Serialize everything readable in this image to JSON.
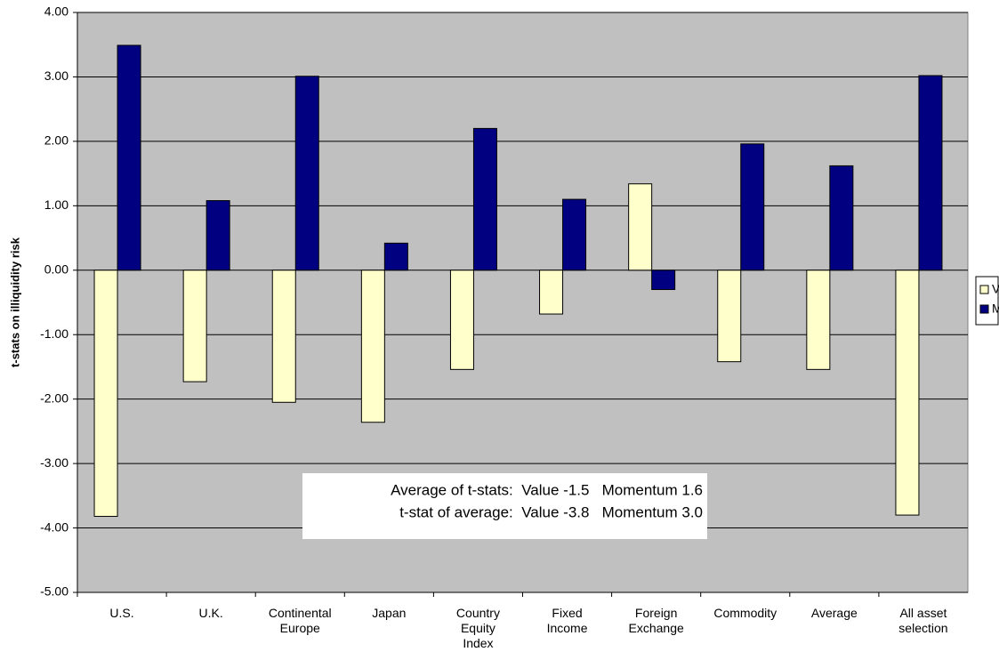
{
  "chart_data": {
    "type": "bar",
    "y_label": "t-stats on illiquidity risk",
    "categories": [
      "U.S.",
      "U.K.",
      "Continental Europe",
      "Japan",
      "Country Equity Index",
      "Fixed Income",
      "Foreign Exchange",
      "Commodity",
      "Average",
      "All asset selection"
    ],
    "series": [
      {
        "name": "Value",
        "color": "#ffffcc",
        "values": [
          -3.82,
          -1.73,
          -2.05,
          -2.36,
          -1.54,
          -0.68,
          1.34,
          -1.42,
          -1.54,
          -3.8
        ]
      },
      {
        "name": "Momentum",
        "color": "#000080",
        "values": [
          3.49,
          1.08,
          3.01,
          0.42,
          2.2,
          1.1,
          -0.3,
          1.96,
          1.62,
          3.02
        ]
      }
    ],
    "ylim": [
      -5,
      4
    ],
    "yticks": [
      {
        "value": 4,
        "label": "4.00"
      },
      {
        "value": 3,
        "label": "3.00"
      },
      {
        "value": 2,
        "label": "2.00"
      },
      {
        "value": 1,
        "label": "1.00"
      },
      {
        "value": 0,
        "label": "0.00"
      },
      {
        "value": -1,
        "label": "-1.00"
      },
      {
        "value": -2,
        "label": "-2.00"
      },
      {
        "value": -3,
        "label": "-3.00"
      },
      {
        "value": -4,
        "label": "-4.00"
      },
      {
        "value": -5,
        "label": "-5.00"
      }
    ],
    "grid": true,
    "legend": "right",
    "annotations": [
      "Average of t-stats:  Value -1.5   Momentum 1.6",
      "t-stat of average:  Value -3.8   Momentum 3.0"
    ]
  }
}
